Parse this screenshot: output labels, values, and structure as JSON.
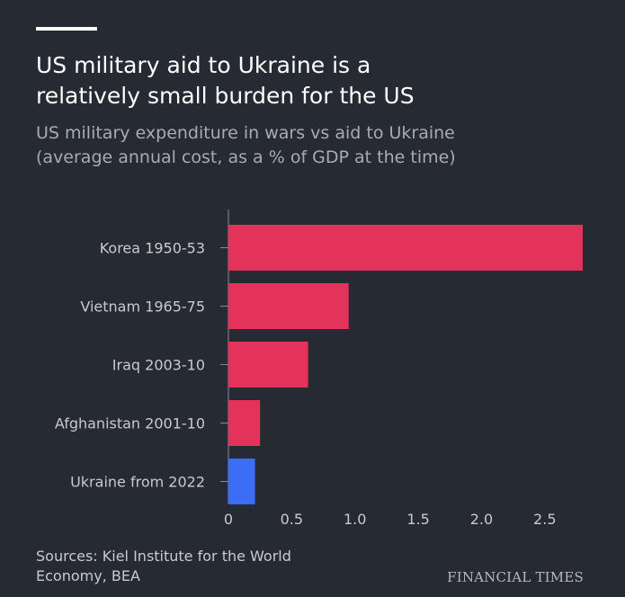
{
  "header": {
    "title_line1": "US military aid to Ukraine is a",
    "title_line2": "relatively small burden for the US",
    "subtitle_line1": "US military expenditure in wars vs aid to Ukraine",
    "subtitle_line2": "(average annual cost, as a % of GDP at the time)"
  },
  "footer": {
    "source_line1": "Sources: Kiel Institute for the World",
    "source_line2": "Economy, BEA",
    "brand": "FINANCIAL TIMES"
  },
  "colors": {
    "background": "#262a33",
    "bar_default": "#e3335a",
    "bar_highlight": "#3c6ef5",
    "axis": "#8a8c92"
  },
  "chart_data": {
    "type": "bar",
    "orientation": "horizontal",
    "categories": [
      "Korea 1950-53",
      "Vietnam 1965-75",
      "Iraq 2003-10",
      "Afghanistan 2001-10",
      "Ukraine from 2022"
    ],
    "values": [
      2.8,
      0.95,
      0.63,
      0.25,
      0.21
    ],
    "highlight": [
      "Ukraine from 2022"
    ],
    "x_ticks": [
      0,
      0.5,
      1.0,
      1.5,
      2.0,
      2.5
    ],
    "x_tick_labels": [
      "0",
      "0.5",
      "1.0",
      "1.5",
      "2.0",
      "2.5"
    ],
    "xlim": [
      0,
      2.8
    ],
    "title": "US military aid to Ukraine is a relatively small burden for the US",
    "subtitle": "US military expenditure in wars vs aid to Ukraine (average annual cost, as a % of GDP at the time)",
    "xlabel": "",
    "ylabel": "",
    "grid": false,
    "legend": "none"
  }
}
